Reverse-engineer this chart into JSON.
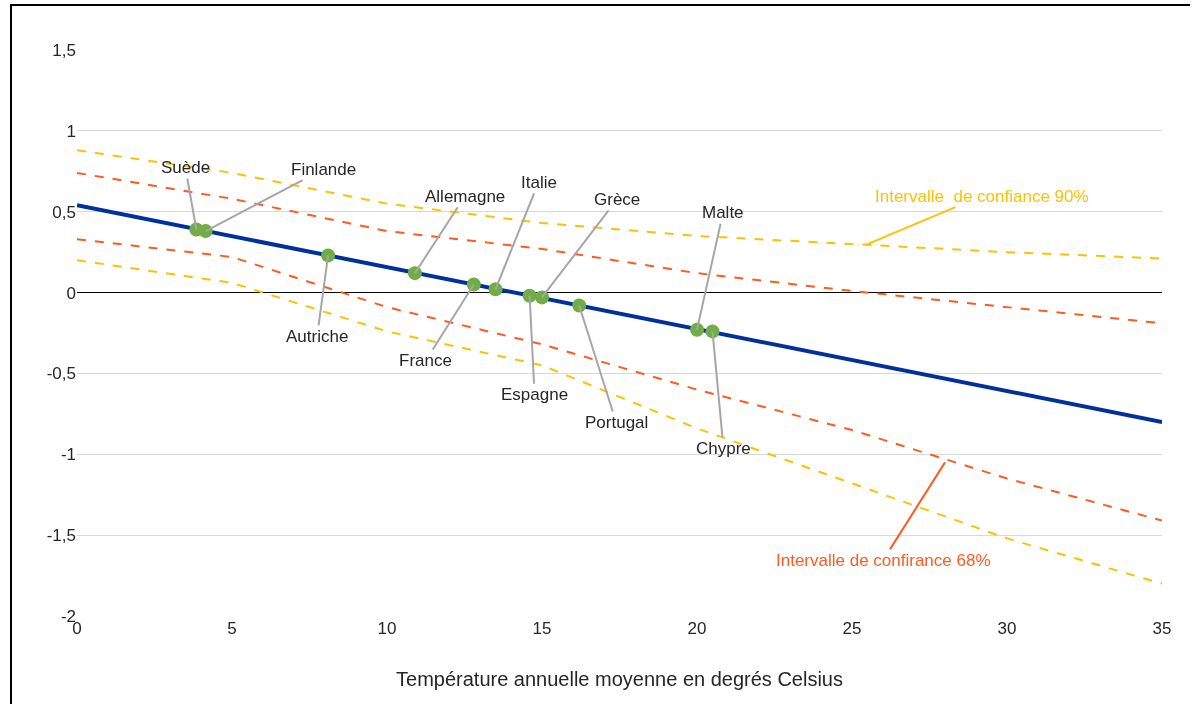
{
  "chart_data": {
    "type": "line",
    "xlabel": "Température annuelle moyenne en degrés Celsius",
    "xlim": [
      0,
      35
    ],
    "xticks": [
      0,
      5,
      10,
      15,
      20,
      25,
      30,
      35
    ],
    "ylim": [
      -2,
      1.5
    ],
    "yticks": [
      {
        "value": -2,
        "label": "-2"
      },
      {
        "value": -1.5,
        "label": "-1,5"
      },
      {
        "value": -1,
        "label": "-1"
      },
      {
        "value": -0.5,
        "label": "-0,5"
      },
      {
        "value": 0,
        "label": "0"
      },
      {
        "value": 0.5,
        "label": "0,5"
      },
      {
        "value": 1,
        "label": "1"
      },
      {
        "value": 1.5,
        "label": "1,5"
      }
    ],
    "grid": "y",
    "line_style": "solid",
    "marker": "none",
    "series": [
      {
        "color": "#ffc000",
        "line_style": "dashed",
        "x": [
          0,
          5,
          10,
          15,
          20,
          25,
          30,
          35
        ],
        "values": [
          0.88,
          0.74,
          0.55,
          0.43,
          0.35,
          0.3,
          0.25,
          0.21
        ]
      },
      {
        "color": "#ff5a1f",
        "line_style": "dashed",
        "x": [
          0,
          5,
          10,
          15,
          20,
          25,
          30,
          35
        ],
        "values": [
          0.74,
          0.58,
          0.38,
          0.27,
          0.12,
          0.01,
          -0.09,
          -0.19
        ]
      },
      {
        "color": "#ff5a1f",
        "line_style": "dashed",
        "x": [
          0,
          5,
          10,
          15,
          20,
          25,
          30,
          35
        ],
        "values": [
          0.33,
          0.22,
          -0.09,
          -0.32,
          -0.6,
          -0.85,
          -1.15,
          -1.41
        ]
      },
      {
        "color": "#ffc000",
        "line_style": "dashed",
        "x": [
          0,
          5,
          10,
          15,
          20,
          25,
          30,
          35
        ],
        "values": [
          0.2,
          0.06,
          -0.24,
          -0.45,
          -0.84,
          -1.18,
          -1.52,
          -1.8
        ]
      },
      {
        "color": "#002f9e",
        "x": [
          0,
          35
        ],
        "values": [
          0.54,
          -0.8
        ]
      },
      {
        "type": "scatter",
        "marker": "circle",
        "color": "#70ad47",
        "x": [
          3.85,
          4.15,
          8.1,
          10.9,
          12.8,
          13.5,
          14.6,
          15.0,
          16.2,
          20.0,
          20.5
        ],
        "values": [
          0.39,
          0.38,
          0.23,
          0.12,
          0.05,
          0.02,
          -0.02,
          -0.03,
          -0.08,
          -0.23,
          -0.24
        ]
      }
    ],
    "annotations": [
      {
        "text": "Suède",
        "x": 3.85,
        "y": 0.39
      },
      {
        "text": "Finlande",
        "x": 4.15,
        "y": 0.38
      },
      {
        "text": "Autriche",
        "x": 8.1,
        "y": 0.23
      },
      {
        "text": "Allemagne",
        "x": 10.9,
        "y": 0.12
      },
      {
        "text": "France",
        "x": 12.8,
        "y": 0.05
      },
      {
        "text": "Italie",
        "x": 13.5,
        "y": 0.02
      },
      {
        "text": "Espagne",
        "x": 14.6,
        "y": -0.02
      },
      {
        "text": "Grèce",
        "x": 15.0,
        "y": -0.03
      },
      {
        "text": "Portugal",
        "x": 16.2,
        "y": -0.08
      },
      {
        "text": "Malte",
        "x": 20.0,
        "y": -0.23
      },
      {
        "text": "Chypre",
        "x": 20.5,
        "y": -0.24
      },
      {
        "text": "Intervalle  de confiance 90%",
        "x": 25.5,
        "y": 0.3
      },
      {
        "text": "Intervalle de confirance 68%",
        "x": 28,
        "y": -1.05
      }
    ]
  }
}
